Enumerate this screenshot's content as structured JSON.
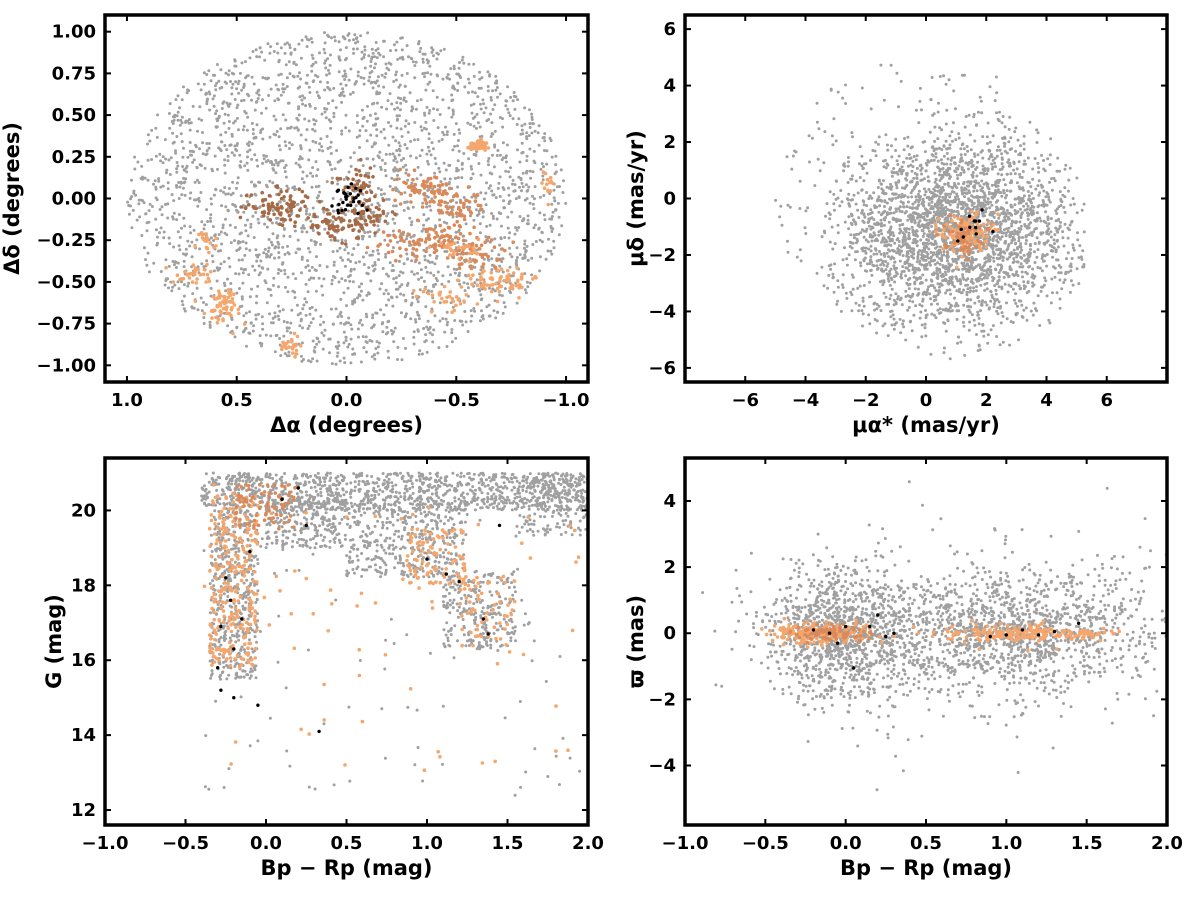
{
  "colors": {
    "field": "#a0a0a0",
    "member_light": "#f4a66c",
    "member_mid": "#d9895a",
    "member_dark": "#a66a45",
    "member_black": "#000000",
    "frame": "#000000"
  },
  "chart_data": [
    {
      "type": "scatter",
      "panel": "top-left",
      "xlabel": "Δα (degrees)",
      "ylabel": "Δδ (degrees)",
      "xlim": [
        1.1,
        -1.1
      ],
      "ylim": [
        -1.1,
        1.1
      ],
      "x_ticks": [
        1.0,
        0.5,
        0.0,
        -0.5,
        -1.0
      ],
      "x_tick_labels": [
        "1.0",
        "0.5",
        "0.0",
        "−0.5",
        "−1.0"
      ],
      "y_ticks": [
        -1.0,
        -0.75,
        -0.5,
        -0.25,
        0.0,
        0.25,
        0.5,
        0.75,
        1.0
      ],
      "y_tick_labels": [
        "−1.00",
        "−0.75",
        "−0.50",
        "−0.25",
        "0.00",
        "0.25",
        "0.50",
        "0.75",
        "1.00"
      ],
      "grid": false,
      "series": [
        {
          "style": "field",
          "distribution": "uniform disk",
          "center": [
            0.0,
            0.0
          ],
          "radius": 1.0,
          "n": 2600
        },
        {
          "style": "member",
          "clumps": [
            {
              "x": 0.3,
              "y": -0.05,
              "sx": 0.08,
              "sy": 0.05,
              "n": 90,
              "color": "member_dark"
            },
            {
              "x": 0.05,
              "y": -0.15,
              "sx": 0.07,
              "sy": 0.05,
              "n": 60,
              "color": "member_dark"
            },
            {
              "x": -0.1,
              "y": -0.1,
              "sx": 0.05,
              "sy": 0.06,
              "n": 50,
              "color": "member_dark"
            },
            {
              "x": -0.05,
              "y": 0.1,
              "sx": 0.04,
              "sy": 0.06,
              "n": 40,
              "color": "member_dark"
            },
            {
              "x": -0.35,
              "y": 0.05,
              "sx": 0.07,
              "sy": 0.05,
              "n": 70,
              "color": "member_mid"
            },
            {
              "x": -0.5,
              "y": -0.05,
              "sx": 0.06,
              "sy": 0.05,
              "n": 50,
              "color": "member_mid"
            },
            {
              "x": -0.4,
              "y": -0.25,
              "sx": 0.12,
              "sy": 0.05,
              "n": 110,
              "color": "member_mid"
            },
            {
              "x": -0.6,
              "y": -0.35,
              "sx": 0.06,
              "sy": 0.04,
              "n": 40,
              "color": "member_mid"
            },
            {
              "x": -0.7,
              "y": -0.5,
              "sx": 0.08,
              "sy": 0.05,
              "n": 70,
              "color": "member_light"
            },
            {
              "x": -0.5,
              "y": -0.3,
              "sx": 0.05,
              "sy": 0.03,
              "n": 30,
              "color": "member_light"
            },
            {
              "x": -0.45,
              "y": -0.6,
              "sx": 0.05,
              "sy": 0.04,
              "n": 30,
              "color": "member_light"
            },
            {
              "x": -0.6,
              "y": 0.32,
              "sx": 0.02,
              "sy": 0.02,
              "n": 45,
              "color": "member_light"
            },
            {
              "x": -0.92,
              "y": 0.08,
              "sx": 0.015,
              "sy": 0.04,
              "n": 15,
              "color": "member_light"
            },
            {
              "x": 0.65,
              "y": -0.25,
              "sx": 0.03,
              "sy": 0.03,
              "n": 20,
              "color": "member_light"
            },
            {
              "x": 0.7,
              "y": -0.45,
              "sx": 0.05,
              "sy": 0.03,
              "n": 30,
              "color": "member_light"
            },
            {
              "x": 0.55,
              "y": -0.65,
              "sx": 0.05,
              "sy": 0.06,
              "n": 60,
              "color": "member_light"
            },
            {
              "x": 0.25,
              "y": -0.88,
              "sx": 0.03,
              "sy": 0.03,
              "n": 25,
              "color": "member_light"
            }
          ]
        },
        {
          "style": "core",
          "clumps": [
            {
              "x": 0.0,
              "y": 0.0,
              "sx": 0.035,
              "sy": 0.04,
              "n": 30,
              "color": "member_black"
            }
          ]
        }
      ]
    },
    {
      "type": "scatter",
      "panel": "top-right",
      "xlabel": "μα* (mas/yr)",
      "ylabel": "μδ (mas/yr)",
      "xlim": [
        -8,
        8
      ],
      "ylim": [
        -6.5,
        6.5
      ],
      "x_ticks": [
        -6,
        -4,
        -2,
        0,
        2,
        4,
        6
      ],
      "x_tick_labels": [
        "−6",
        "−4",
        "−2",
        "0",
        "2",
        "4",
        "6"
      ],
      "y_ticks": [
        -6,
        -4,
        -2,
        0,
        2,
        4,
        6
      ],
      "y_tick_labels": [
        "−6",
        "−4",
        "−2",
        "0",
        "2",
        "4",
        "6"
      ],
      "grid": false,
      "series": [
        {
          "style": "field",
          "distribution": "gaussian disk",
          "center": [
            1.0,
            -1.2
          ],
          "sigma": [
            2.0,
            1.6
          ],
          "radius": 4.5,
          "n": 2600
        },
        {
          "style": "field-halo",
          "distribution": "uniform disk",
          "center": [
            0.0,
            0.0
          ],
          "radius": 5.0,
          "n": 300
        },
        {
          "style": "member",
          "clumps": [
            {
              "x": 1.3,
              "y": -1.2,
              "sx": 0.4,
              "sy": 0.35,
              "n": 130,
              "color": "member_light"
            },
            {
              "x": 1.2,
              "y": -1.3,
              "sx": 0.3,
              "sy": 0.3,
              "n": 60,
              "color": "member_mid"
            }
          ]
        },
        {
          "style": "core",
          "clumps": [
            {
              "x": 1.5,
              "y": -1.1,
              "sx": 0.3,
              "sy": 0.3,
              "n": 12,
              "color": "member_black"
            }
          ]
        }
      ]
    },
    {
      "type": "scatter",
      "panel": "bottom-left",
      "xlabel": "Bp − Rp (mag)",
      "ylabel": "G (mag)",
      "xlim": [
        -1.0,
        2.0
      ],
      "ylim": [
        11.6,
        21.4
      ],
      "x_ticks": [
        -1.0,
        -0.5,
        0.0,
        0.5,
        1.0,
        1.5,
        2.0
      ],
      "x_tick_labels": [
        "−1.0",
        "−0.5",
        "0.0",
        "0.5",
        "1.0",
        "1.5",
        "2.0"
      ],
      "y_ticks": [
        12,
        14,
        16,
        18,
        20
      ],
      "y_tick_labels": [
        "12",
        "14",
        "16",
        "18",
        "20"
      ],
      "grid": false,
      "series": [
        {
          "style": "field",
          "bands": [
            {
              "x": [
                -0.4,
                2.0
              ],
              "y": [
                20.0,
                21.0
              ],
              "n": 1100
            },
            {
              "x": [
                -0.35,
                -0.05
              ],
              "y": [
                15.5,
                20.0
              ],
              "n": 500
            },
            {
              "x": [
                0.0,
                0.5
              ],
              "y": [
                19.0,
                20.3
              ],
              "n": 220
            },
            {
              "x": [
                0.5,
                1.25
              ],
              "y": [
                18.2,
                20.2
              ],
              "n": 400
            },
            {
              "x": [
                1.1,
                1.55
              ],
              "y": [
                16.3,
                18.4
              ],
              "n": 260
            },
            {
              "x": [
                1.55,
                2.0
              ],
              "y": [
                19.3,
                21.0
              ],
              "n": 150
            },
            {
              "x": [
                -0.4,
                2.0
              ],
              "y": [
                12.3,
                21.0
              ],
              "n": 120
            }
          ]
        },
        {
          "style": "member",
          "bands": [
            {
              "x": [
                -0.35,
                -0.05
              ],
              "y": [
                15.8,
                20.5
              ],
              "n": 260,
              "color": "member_light"
            },
            {
              "x": [
                -0.2,
                0.2
              ],
              "y": [
                19.5,
                20.7
              ],
              "n": 80,
              "color": "member_mid"
            },
            {
              "x": [
                0.85,
                1.25
              ],
              "y": [
                18.0,
                19.5
              ],
              "n": 90,
              "color": "member_light"
            },
            {
              "x": [
                1.2,
                1.55
              ],
              "y": [
                16.3,
                18.3
              ],
              "n": 60,
              "color": "member_light"
            },
            {
              "x": [
                -0.4,
                2.0
              ],
              "y": [
                13.0,
                20.8
              ],
              "n": 70,
              "color": "member_light"
            }
          ]
        },
        {
          "style": "core",
          "points": [
            [
              -0.25,
              18.2
            ],
            [
              -0.22,
              17.6
            ],
            [
              -0.28,
              16.9
            ],
            [
              -0.2,
              16.3
            ],
            [
              -0.3,
              15.8
            ],
            [
              -0.15,
              17.1
            ],
            [
              -0.05,
              14.8
            ],
            [
              0.1,
              20.3
            ],
            [
              0.25,
              19.6
            ],
            [
              0.33,
              14.1
            ],
            [
              1.0,
              18.7
            ],
            [
              1.2,
              18.1
            ],
            [
              1.35,
              17.1
            ],
            [
              1.45,
              19.6
            ],
            [
              -0.28,
              15.2
            ],
            [
              0.2,
              20.6
            ],
            [
              -0.1,
              18.9
            ],
            [
              1.12,
              18.3
            ],
            [
              1.38,
              16.7
            ],
            [
              -0.2,
              15.0
            ]
          ]
        }
      ]
    },
    {
      "type": "scatter",
      "panel": "bottom-right",
      "xlabel": "Bp − Rp (mag)",
      "ylabel": "ϖ (mas)",
      "xlim": [
        -1.0,
        2.0
      ],
      "ylim": [
        -5.8,
        5.3
      ],
      "x_ticks": [
        -1.0,
        -0.5,
        0.0,
        0.5,
        1.0,
        1.5,
        2.0
      ],
      "x_tick_labels": [
        "−1.0",
        "−0.5",
        "0.0",
        "0.5",
        "1.0",
        "1.5",
        "2.0"
      ],
      "y_ticks": [
        -4,
        -2,
        0,
        2,
        4
      ],
      "y_tick_labels": [
        "−4",
        "−2",
        "0",
        "2",
        "4"
      ],
      "grid": false,
      "series": [
        {
          "style": "field",
          "distribution": "gaussian",
          "clouds": [
            {
              "x": 0.0,
              "y": 0.0,
              "sx": 0.25,
              "sy": 1.0,
              "n": 1200
            },
            {
              "x": 1.0,
              "y": 0.0,
              "sx": 0.35,
              "sy": 0.9,
              "n": 1100
            },
            {
              "x": 1.7,
              "y": 0.3,
              "sx": 0.25,
              "sy": 1.2,
              "n": 200
            },
            {
              "x": 0.5,
              "y": 0.0,
              "sx": 0.6,
              "sy": 2.0,
              "n": 120
            }
          ]
        },
        {
          "style": "member",
          "clumps": [
            {
              "x": -0.15,
              "y": 0.0,
              "sx": 0.15,
              "sy": 0.15,
              "n": 220,
              "color": "member_light"
            },
            {
              "x": -0.1,
              "y": 0.0,
              "sx": 0.1,
              "sy": 0.12,
              "n": 80,
              "color": "member_mid"
            },
            {
              "x": 1.05,
              "y": 0.0,
              "sx": 0.2,
              "sy": 0.13,
              "n": 170,
              "color": "member_light"
            },
            {
              "x": 1.45,
              "y": 0.0,
              "sx": 0.1,
              "sy": 0.08,
              "n": 50,
              "color": "member_light"
            }
          ]
        },
        {
          "style": "core",
          "points": [
            [
              -0.2,
              0.1
            ],
            [
              0.0,
              0.2
            ],
            [
              0.25,
              -0.1
            ],
            [
              0.3,
              0.0
            ],
            [
              -0.05,
              -0.3
            ],
            [
              0.05,
              -1.05
            ],
            [
              0.15,
              0.2
            ],
            [
              1.0,
              -0.05
            ],
            [
              1.1,
              0.1
            ],
            [
              1.3,
              0.05
            ],
            [
              1.45,
              0.3
            ],
            [
              0.2,
              0.55
            ],
            [
              0.9,
              -0.1
            ],
            [
              1.2,
              -0.05
            ],
            [
              -0.1,
              0.0
            ]
          ]
        }
      ]
    }
  ]
}
